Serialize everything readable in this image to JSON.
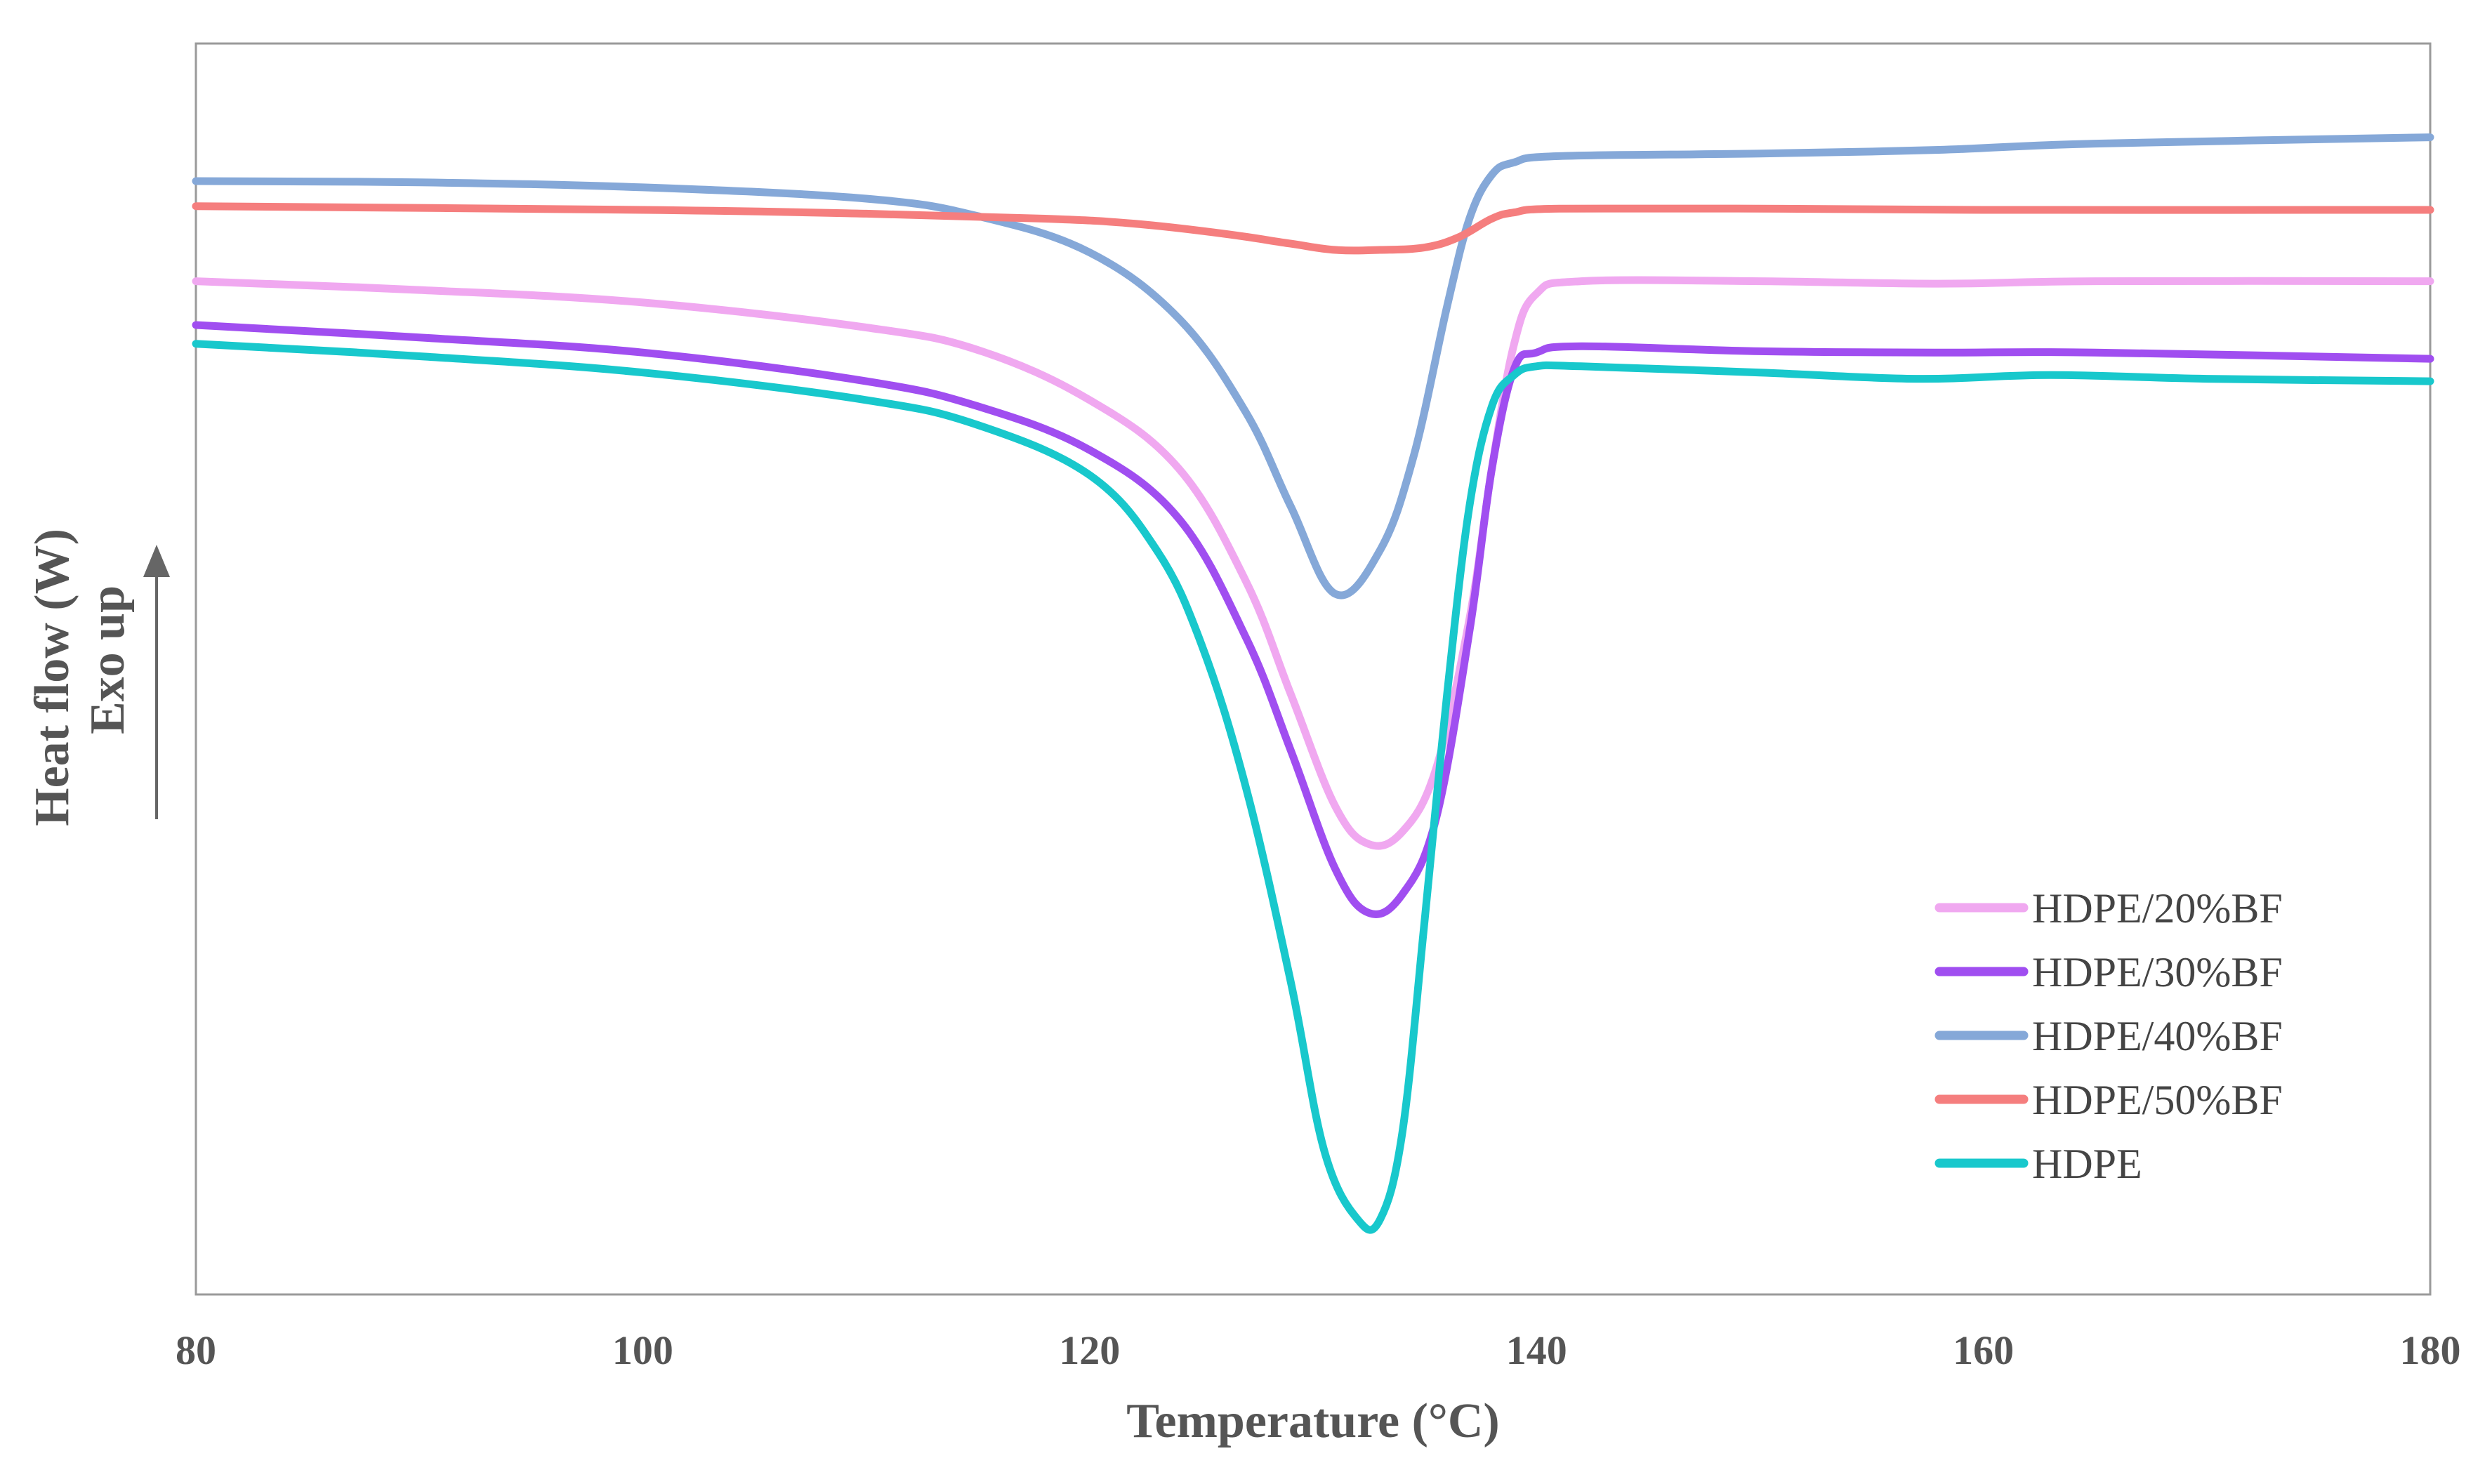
{
  "chart_data": {
    "type": "line",
    "title": "",
    "xlabel": "Temperature (°C)",
    "ylabel": "Heat flow (W)",
    "ylabel_secondary": "Exo up",
    "xlim": [
      80,
      180
    ],
    "ylim": [
      0,
      100
    ],
    "xticks": [
      80,
      100,
      120,
      140,
      160,
      180
    ],
    "xtick_labels": [
      "80",
      "100",
      "120",
      "140",
      "160",
      "180"
    ],
    "yticks_shown": false,
    "grid": false,
    "legend_position": "bottom-right",
    "series": [
      {
        "name": "HDPE/20%BF",
        "color": "#f0a8f0",
        "x": [
          80,
          90,
          100,
          110,
          115,
          120,
          124,
          127,
          129,
          131,
          132.5,
          134,
          135.5,
          137,
          138,
          139,
          140,
          142,
          150,
          158,
          165,
          180
        ],
        "y": [
          81,
          80.3,
          79.3,
          77.3,
          75.5,
          71.5,
          66,
          57,
          48,
          39,
          36,
          37,
          42,
          54,
          66,
          76,
          80,
          81,
          81,
          80.8,
          81,
          81
        ]
      },
      {
        "name": "HDPE/30%BF",
        "color": "#a04ef0",
        "x": [
          80,
          90,
          100,
          110,
          115,
          120,
          124,
          127,
          129,
          131,
          132.5,
          134,
          135.5,
          137,
          138,
          139,
          140,
          142,
          150,
          158,
          165,
          180
        ],
        "y": [
          77.5,
          76.5,
          75.3,
          73,
          71,
          67.5,
          62,
          52.5,
          43.5,
          34,
          30.5,
          32,
          38,
          53,
          66,
          74,
          75.3,
          75.8,
          75.4,
          75.3,
          75.3,
          74.8
        ]
      },
      {
        "name": "HDPE/40%BF",
        "color": "#85a8d8",
        "x": [
          80,
          90,
          100,
          110,
          115,
          120,
          124,
          127,
          129,
          131,
          133,
          134.5,
          136,
          137,
          138,
          139,
          141,
          150,
          158,
          165,
          180
        ],
        "y": [
          89,
          88.9,
          88.5,
          87.6,
          86.2,
          83.3,
          78,
          70.5,
          63,
          56,
          59.5,
          67,
          79,
          86,
          89.5,
          90.5,
          91,
          91.2,
          91.5,
          92,
          92.5
        ]
      },
      {
        "name": "HDPE/50%BF",
        "color": "#f57e7e",
        "x": [
          80,
          100,
          110,
          118,
          122,
          126,
          129,
          131,
          133,
          135,
          136.5,
          138,
          139,
          141,
          150,
          160,
          180
        ],
        "y": [
          87,
          86.7,
          86.4,
          86,
          85.6,
          84.8,
          84,
          83.5,
          83.5,
          83.7,
          84.5,
          86,
          86.5,
          86.8,
          86.8,
          86.7,
          86.7
        ]
      },
      {
        "name": "HDPE",
        "color": "#18c8cc",
        "x": [
          80,
          90,
          100,
          110,
          115,
          120,
          123,
          125,
          127,
          129,
          130.5,
          132,
          133,
          134,
          135,
          136,
          137,
          138,
          139,
          140,
          142,
          150,
          157,
          163,
          170,
          180
        ],
        "y": [
          76,
          75,
          73.7,
          71.5,
          69.5,
          65.5,
          59.5,
          52,
          40.5,
          25,
          11.5,
          6,
          6,
          13,
          30,
          48,
          63,
          71,
          73.5,
          74.2,
          74.2,
          73.7,
          73.2,
          73.5,
          73.2,
          73
        ]
      }
    ]
  }
}
